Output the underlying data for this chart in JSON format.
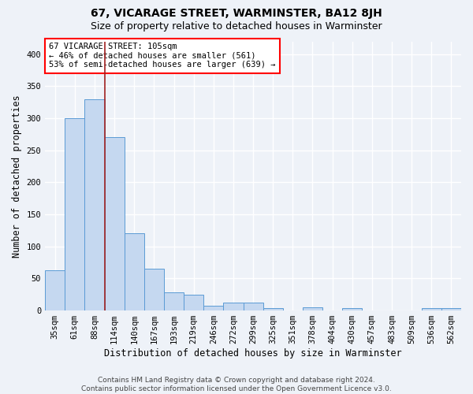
{
  "title": "67, VICARAGE STREET, WARMINSTER, BA12 8JH",
  "subtitle": "Size of property relative to detached houses in Warminster",
  "xlabel": "Distribution of detached houses by size in Warminster",
  "ylabel": "Number of detached properties",
  "categories": [
    "35sqm",
    "61sqm",
    "88sqm",
    "114sqm",
    "140sqm",
    "167sqm",
    "193sqm",
    "219sqm",
    "246sqm",
    "272sqm",
    "299sqm",
    "325sqm",
    "351sqm",
    "378sqm",
    "404sqm",
    "430sqm",
    "457sqm",
    "483sqm",
    "509sqm",
    "536sqm",
    "562sqm"
  ],
  "values": [
    63,
    300,
    330,
    270,
    120,
    65,
    28,
    25,
    8,
    13,
    13,
    4,
    0,
    5,
    0,
    4,
    0,
    0,
    0,
    4,
    4
  ],
  "bar_color": "#c5d8f0",
  "bar_edge_color": "#5b9bd5",
  "red_line_x": 2.5,
  "annotation_line1": "67 VICARAGE STREET: 105sqm",
  "annotation_line2": "← 46% of detached houses are smaller (561)",
  "annotation_line3": "53% of semi-detached houses are larger (639) →",
  "annotation_box_color": "white",
  "annotation_box_edge_color": "red",
  "red_line_color": "#a02020",
  "ylim": [
    0,
    420
  ],
  "yticks": [
    0,
    50,
    100,
    150,
    200,
    250,
    300,
    350,
    400
  ],
  "footer_line1": "Contains HM Land Registry data © Crown copyright and database right 2024.",
  "footer_line2": "Contains public sector information licensed under the Open Government Licence v3.0.",
  "background_color": "#eef2f8",
  "grid_color": "#ffffff",
  "title_fontsize": 10,
  "subtitle_fontsize": 9,
  "axis_label_fontsize": 8.5,
  "tick_fontsize": 7.5,
  "annotation_fontsize": 7.5,
  "footer_fontsize": 6.5
}
